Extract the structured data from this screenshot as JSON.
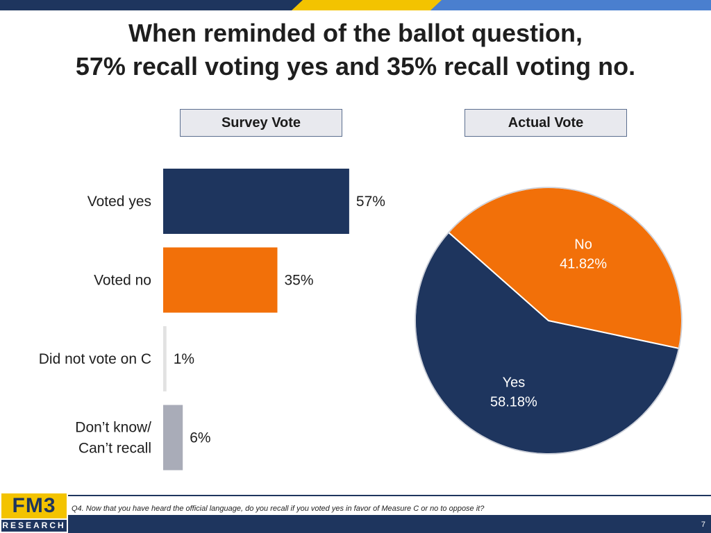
{
  "title": {
    "line1": "When reminded of the ballot question,",
    "line2": "57% recall voting yes and 35% recall voting no."
  },
  "labels": {
    "survey": "Survey Vote",
    "actual": "Actual Vote"
  },
  "chart_data": [
    {
      "type": "bar",
      "orientation": "horizontal",
      "title": "Survey Vote",
      "categories": [
        "Voted yes",
        "Voted no",
        "Did not vote on C",
        "Don’t know/\nCan’t recall"
      ],
      "values": [
        57,
        35,
        1,
        6
      ],
      "value_labels": [
        "57%",
        "35%",
        "1%",
        "6%"
      ],
      "colors": [
        "#1e355e",
        "#f27009",
        "#e2e2e2",
        "#a9acb8"
      ],
      "xlim": [
        0,
        100
      ],
      "grid": false,
      "legend": "none"
    },
    {
      "type": "pie",
      "title": "Actual Vote",
      "categories": [
        "Yes",
        "No"
      ],
      "values": [
        58.18,
        41.82
      ],
      "value_labels": [
        "58.18%",
        "41.82%"
      ],
      "colors": [
        "#1e355e",
        "#f27009"
      ],
      "legend": "none"
    }
  ],
  "footer": {
    "logo_top": "FM3",
    "logo_bottom": "RESEARCH",
    "footnote": "Q4. Now that you have heard the official language, do you recall if you voted yes in favor of Measure C or no to oppose it?",
    "page_number": "7"
  },
  "colors": {
    "navy": "#1e355e",
    "orange": "#f27009",
    "gold": "#f3c300",
    "light_blue": "#4a7fcf"
  }
}
